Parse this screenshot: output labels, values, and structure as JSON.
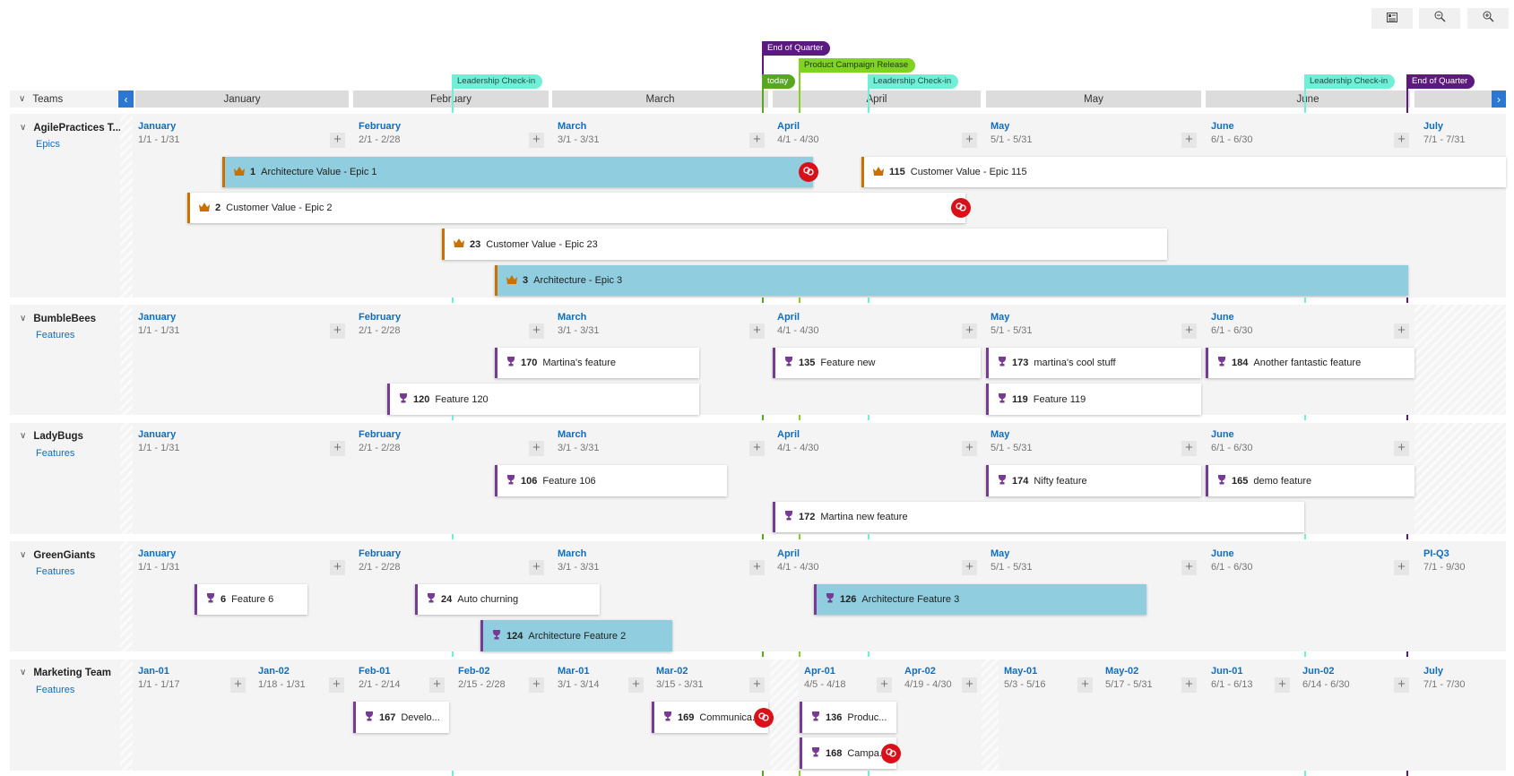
{
  "toolbar": {
    "buttons": [
      {
        "name": "view-options-button",
        "icon": "view-options-icon"
      },
      {
        "name": "zoom-out-button",
        "icon": "zoom-out-icon"
      },
      {
        "name": "zoom-in-button",
        "icon": "zoom-in-icon"
      }
    ]
  },
  "header": {
    "teams_label": "Teams",
    "months": [
      "January",
      "February",
      "March",
      "April",
      "May",
      "June",
      ""
    ]
  },
  "colors": {
    "accent": "#2b78d4",
    "epic": "#c87000",
    "feature": "#773b93",
    "highlight_card": "#8fcddf",
    "link_badge": "#d9101a"
  },
  "markers": [
    {
      "label": "Leadership Check-in",
      "color": "#6ff0d6",
      "text_color": "#1a4d44"
    },
    {
      "label": "End of Quarter",
      "color": "#5c1a80",
      "text_color": "#ffffff"
    },
    {
      "label": "today",
      "color": "#57a820",
      "text_color": "#ffffff"
    },
    {
      "label": "Product Campaign Release",
      "color": "#80d321",
      "text_color": "#1d3b00"
    },
    {
      "label": "Leadership Check-in",
      "color": "#6ff0d6",
      "text_color": "#1a4d44"
    },
    {
      "label": "Leadership Check-in",
      "color": "#6ff0d6",
      "text_color": "#1a4d44"
    },
    {
      "label": "End of Quarter",
      "color": "#5c1a80",
      "text_color": "#ffffff"
    }
  ],
  "teams": [
    {
      "name": "AgilePractices T...",
      "backlog": "Epics",
      "columns": [
        {
          "label": "January",
          "dates": "1/1 - 1/31"
        },
        {
          "label": "February",
          "dates": "2/1 - 2/28"
        },
        {
          "label": "March",
          "dates": "3/1 - 3/31"
        },
        {
          "label": "April",
          "dates": "4/1 - 4/30"
        },
        {
          "label": "May",
          "dates": "5/1 - 5/31"
        },
        {
          "label": "June",
          "dates": "6/1 - 6/30"
        },
        {
          "label": "July",
          "dates": "7/1 - 7/31"
        }
      ],
      "cards": [
        {
          "id": "1",
          "title": "Architecture Value - Epic 1",
          "type": "epic",
          "highlighted": true,
          "has_link": true
        },
        {
          "id": "115",
          "title": "Customer Value - Epic 115",
          "type": "epic",
          "highlighted": false,
          "has_link": false
        },
        {
          "id": "2",
          "title": "Customer Value - Epic 2",
          "type": "epic",
          "highlighted": false,
          "has_link": true
        },
        {
          "id": "23",
          "title": "Customer Value - Epic 23",
          "type": "epic",
          "highlighted": false,
          "has_link": false
        },
        {
          "id": "3",
          "title": "Architecture - Epic 3",
          "type": "epic",
          "highlighted": true,
          "has_link": false
        }
      ]
    },
    {
      "name": "BumbleBees",
      "backlog": "Features",
      "columns": [
        {
          "label": "January",
          "dates": "1/1 - 1/31"
        },
        {
          "label": "February",
          "dates": "2/1 - 2/28"
        },
        {
          "label": "March",
          "dates": "3/1 - 3/31"
        },
        {
          "label": "April",
          "dates": "4/1 - 4/30"
        },
        {
          "label": "May",
          "dates": "5/1 - 5/31"
        },
        {
          "label": "June",
          "dates": "6/1 - 6/30"
        }
      ],
      "cards": [
        {
          "id": "170",
          "title": "Martina's feature",
          "type": "feature",
          "highlighted": false,
          "has_link": false
        },
        {
          "id": "135",
          "title": "Feature new",
          "type": "feature",
          "highlighted": false,
          "has_link": false
        },
        {
          "id": "173",
          "title": "martina's cool stuff",
          "type": "feature",
          "highlighted": false,
          "has_link": false
        },
        {
          "id": "184",
          "title": "Another fantastic feature",
          "type": "feature",
          "highlighted": false,
          "has_link": false
        },
        {
          "id": "120",
          "title": "Feature 120",
          "type": "feature",
          "highlighted": false,
          "has_link": false
        },
        {
          "id": "119",
          "title": "Feature 119",
          "type": "feature",
          "highlighted": false,
          "has_link": false
        }
      ]
    },
    {
      "name": "LadyBugs",
      "backlog": "Features",
      "columns": [
        {
          "label": "January",
          "dates": "1/1 - 1/31"
        },
        {
          "label": "February",
          "dates": "2/1 - 2/28"
        },
        {
          "label": "March",
          "dates": "3/1 - 3/31"
        },
        {
          "label": "April",
          "dates": "4/1 - 4/30"
        },
        {
          "label": "May",
          "dates": "5/1 - 5/31"
        },
        {
          "label": "June",
          "dates": "6/1 - 6/30"
        }
      ],
      "cards": [
        {
          "id": "106",
          "title": "Feature 106",
          "type": "feature",
          "highlighted": false,
          "has_link": false
        },
        {
          "id": "174",
          "title": "Nifty feature",
          "type": "feature",
          "highlighted": false,
          "has_link": false
        },
        {
          "id": "165",
          "title": "demo feature",
          "type": "feature",
          "highlighted": false,
          "has_link": false
        },
        {
          "id": "172",
          "title": "Martina new feature",
          "type": "feature",
          "highlighted": false,
          "has_link": false
        }
      ]
    },
    {
      "name": "GreenGiants",
      "backlog": "Features",
      "columns": [
        {
          "label": "January",
          "dates": "1/1 - 1/31"
        },
        {
          "label": "February",
          "dates": "2/1 - 2/28"
        },
        {
          "label": "March",
          "dates": "3/1 - 3/31"
        },
        {
          "label": "April",
          "dates": "4/1 - 4/30"
        },
        {
          "label": "May",
          "dates": "5/1 - 5/31"
        },
        {
          "label": "June",
          "dates": "6/1 - 6/30"
        },
        {
          "label": "PI-Q3",
          "dates": "7/1 - 9/30"
        }
      ],
      "cards": [
        {
          "id": "6",
          "title": "Feature 6",
          "type": "feature",
          "highlighted": false,
          "has_link": false
        },
        {
          "id": "24",
          "title": "Auto churning",
          "type": "feature",
          "highlighted": false,
          "has_link": false
        },
        {
          "id": "126",
          "title": "Architecture Feature 3",
          "type": "feature",
          "highlighted": true,
          "has_link": false
        },
        {
          "id": "124",
          "title": "Architecture Feature 2",
          "type": "feature",
          "highlighted": true,
          "has_link": false
        }
      ]
    },
    {
      "name": "Marketing Team",
      "backlog": "Features",
      "columns": [
        {
          "label": "Jan-01",
          "dates": "1/1 - 1/17"
        },
        {
          "label": "Jan-02",
          "dates": "1/18 - 1/31"
        },
        {
          "label": "Feb-01",
          "dates": "2/1 - 2/14"
        },
        {
          "label": "Feb-02",
          "dates": "2/15 - 2/28"
        },
        {
          "label": "Mar-01",
          "dates": "3/1 - 3/14"
        },
        {
          "label": "Mar-02",
          "dates": "3/15 - 3/31"
        },
        {
          "label": "Apr-01",
          "dates": "4/5 - 4/18"
        },
        {
          "label": "Apr-02",
          "dates": "4/19 - 4/30"
        },
        {
          "label": "May-01",
          "dates": "5/3 - 5/16"
        },
        {
          "label": "May-02",
          "dates": "5/17 - 5/31"
        },
        {
          "label": "Jun-01",
          "dates": "6/1 - 6/13"
        },
        {
          "label": "Jun-02",
          "dates": "6/14 - 6/30"
        },
        {
          "label": "July",
          "dates": "7/1 - 7/30"
        }
      ],
      "cards": [
        {
          "id": "167",
          "title": "Develo...",
          "type": "feature",
          "highlighted": false,
          "has_link": false
        },
        {
          "id": "169",
          "title": "Communica...",
          "type": "feature",
          "highlighted": false,
          "has_link": true
        },
        {
          "id": "136",
          "title": "Produc...",
          "type": "feature",
          "highlighted": false,
          "has_link": false
        },
        {
          "id": "168",
          "title": "Campa...",
          "type": "feature",
          "highlighted": false,
          "has_link": true
        }
      ]
    }
  ]
}
